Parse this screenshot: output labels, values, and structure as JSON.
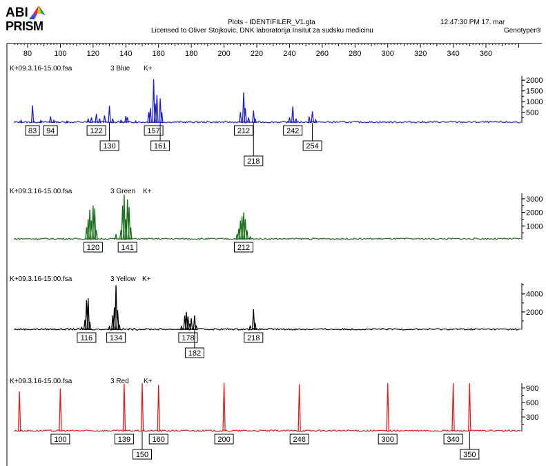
{
  "header": {
    "logo_top": "ABI",
    "logo_bottom": "PRISM",
    "title": "Plots - IDENTIFILER_V1.gta",
    "license": "Licensed to Oliver Stojkovic, DNK laboratorija Insitut za sudsku medicinu",
    "time": "12:47:30  PM 17. mar",
    "app": "Genotyper®"
  },
  "colors": {
    "blue": "#1e1ec8",
    "green": "#1b6e1b",
    "yellow": "#000000",
    "red": "#dc1e1e"
  },
  "chart_data": {
    "type": "line",
    "x_axis": {
      "range": [
        72,
        380
      ],
      "ticks": [
        80,
        100,
        120,
        140,
        160,
        180,
        200,
        220,
        240,
        260,
        280,
        300,
        320,
        340,
        360
      ]
    },
    "panels": [
      {
        "name": "blue",
        "sample": "K+09.3.16-15.00.fsa",
        "dye": "3 Blue",
        "tag": "K+",
        "color": "#1e1ec8",
        "y_ticks": [
          {
            "value": 2000,
            "label": "2000"
          },
          {
            "value": 1500,
            "label": "1500"
          },
          {
            "value": 1000,
            "label": "1000"
          },
          {
            "value": 500,
            "label": "500"
          }
        ],
        "y_max": 2200,
        "peaks": [
          {
            "x": 76,
            "h": 120
          },
          {
            "x": 83,
            "h": 820
          },
          {
            "x": 88,
            "h": 110
          },
          {
            "x": 94,
            "h": 300
          },
          {
            "x": 96,
            "h": 120
          },
          {
            "x": 104,
            "h": 80
          },
          {
            "x": 117,
            "h": 180
          },
          {
            "x": 119,
            "h": 260
          },
          {
            "x": 122,
            "h": 420
          },
          {
            "x": 124,
            "h": 200
          },
          {
            "x": 127,
            "h": 350
          },
          {
            "x": 130,
            "h": 800
          },
          {
            "x": 132,
            "h": 200
          },
          {
            "x": 137,
            "h": 120
          },
          {
            "x": 140,
            "h": 320
          },
          {
            "x": 141,
            "h": 260
          },
          {
            "x": 146,
            "h": 90
          },
          {
            "x": 154,
            "h": 500
          },
          {
            "x": 155,
            "h": 700
          },
          {
            "x": 157,
            "h": 2050
          },
          {
            "x": 158,
            "h": 900
          },
          {
            "x": 159,
            "h": 1300
          },
          {
            "x": 161,
            "h": 1150
          },
          {
            "x": 162,
            "h": 500
          },
          {
            "x": 210,
            "h": 500
          },
          {
            "x": 212,
            "h": 1430
          },
          {
            "x": 213,
            "h": 700
          },
          {
            "x": 215,
            "h": 250
          },
          {
            "x": 218,
            "h": 580
          },
          {
            "x": 219,
            "h": 200
          },
          {
            "x": 240,
            "h": 250
          },
          {
            "x": 242,
            "h": 770
          },
          {
            "x": 244,
            "h": 200
          },
          {
            "x": 252,
            "h": 300
          },
          {
            "x": 254,
            "h": 540
          },
          {
            "x": 256,
            "h": 150
          }
        ],
        "labels": [
          {
            "text": "83",
            "x": 83,
            "row": 1
          },
          {
            "text": "94",
            "x": 94,
            "row": 1
          },
          {
            "text": "122",
            "x": 122,
            "row": 1
          },
          {
            "text": "130",
            "x": 130,
            "row": 2
          },
          {
            "text": "157",
            "x": 157,
            "row": 1
          },
          {
            "text": "161",
            "x": 161,
            "row": 2
          },
          {
            "text": "212",
            "x": 212,
            "row": 1
          },
          {
            "text": "218",
            "x": 218,
            "row": 3
          },
          {
            "text": "242",
            "x": 242,
            "row": 1
          },
          {
            "text": "254",
            "x": 254,
            "row": 2
          }
        ]
      },
      {
        "name": "green",
        "sample": "K+09.3.16-15.00.fsa",
        "dye": "3 Green",
        "tag": "K+",
        "color": "#1b6e1b",
        "y_ticks": [
          {
            "value": 3000,
            "label": "3000"
          },
          {
            "value": 2000,
            "label": "2000"
          },
          {
            "value": 1000,
            "label": "1000"
          }
        ],
        "y_max": 3400,
        "peaks": [
          {
            "x": 116,
            "h": 900
          },
          {
            "x": 117,
            "h": 1500
          },
          {
            "x": 118,
            "h": 2200
          },
          {
            "x": 119,
            "h": 1400
          },
          {
            "x": 120,
            "h": 2500
          },
          {
            "x": 121,
            "h": 2300
          },
          {
            "x": 122,
            "h": 700
          },
          {
            "x": 134,
            "h": 400
          },
          {
            "x": 137,
            "h": 700
          },
          {
            "x": 138,
            "h": 2500
          },
          {
            "x": 139,
            "h": 3300
          },
          {
            "x": 140,
            "h": 1500
          },
          {
            "x": 141,
            "h": 2950
          },
          {
            "x": 142,
            "h": 2400
          },
          {
            "x": 143,
            "h": 900
          },
          {
            "x": 208,
            "h": 400
          },
          {
            "x": 209,
            "h": 800
          },
          {
            "x": 210,
            "h": 1400
          },
          {
            "x": 211,
            "h": 1700
          },
          {
            "x": 212,
            "h": 2000
          },
          {
            "x": 213,
            "h": 1500
          },
          {
            "x": 214,
            "h": 700
          },
          {
            "x": 216,
            "h": 200
          }
        ],
        "labels": [
          {
            "text": "120",
            "x": 120,
            "row": 1
          },
          {
            "text": "141",
            "x": 141,
            "row": 1
          },
          {
            "text": "212",
            "x": 212,
            "row": 1
          }
        ]
      },
      {
        "name": "yellow",
        "sample": "K+09.3.16-15.00.fsa",
        "dye": "3 Yellow",
        "tag": "K+",
        "color": "#000000",
        "y_ticks": [
          {
            "value": 4000,
            "label": "4000"
          },
          {
            "value": 2000,
            "label": "2000"
          }
        ],
        "y_max": 5200,
        "peaks": [
          {
            "x": 113,
            "h": 300
          },
          {
            "x": 115,
            "h": 1100
          },
          {
            "x": 116,
            "h": 3300
          },
          {
            "x": 117,
            "h": 3500
          },
          {
            "x": 118,
            "h": 900
          },
          {
            "x": 130,
            "h": 400
          },
          {
            "x": 132,
            "h": 1600
          },
          {
            "x": 133,
            "h": 2500
          },
          {
            "x": 134,
            "h": 4950
          },
          {
            "x": 135,
            "h": 2200
          },
          {
            "x": 136,
            "h": 600
          },
          {
            "x": 174,
            "h": 400
          },
          {
            "x": 176,
            "h": 1600
          },
          {
            "x": 177,
            "h": 2000
          },
          {
            "x": 178,
            "h": 1500
          },
          {
            "x": 179,
            "h": 700
          },
          {
            "x": 180,
            "h": 1300
          },
          {
            "x": 182,
            "h": 1600
          },
          {
            "x": 183,
            "h": 500
          },
          {
            "x": 216,
            "h": 500
          },
          {
            "x": 218,
            "h": 2300
          },
          {
            "x": 219,
            "h": 800
          }
        ],
        "labels": [
          {
            "text": "116",
            "x": 116,
            "row": 1
          },
          {
            "text": "134",
            "x": 134,
            "row": 1
          },
          {
            "text": "178",
            "x": 178,
            "row": 1
          },
          {
            "text": "182",
            "x": 182,
            "row": 2
          },
          {
            "text": "218",
            "x": 218,
            "row": 1
          }
        ]
      },
      {
        "name": "red",
        "sample": "K+09.3.16-15.00.fsa",
        "dye": "3 Red",
        "tag": "K+",
        "color": "#dc1e1e",
        "y_ticks": [
          {
            "value": 900,
            "label": "900"
          },
          {
            "value": 600,
            "label": "600"
          },
          {
            "value": 300,
            "label": "300"
          }
        ],
        "y_max": 1000,
        "peaks": [
          {
            "x": 75,
            "h": 830
          },
          {
            "x": 100,
            "h": 890
          },
          {
            "x": 139,
            "h": 990
          },
          {
            "x": 150,
            "h": 1000
          },
          {
            "x": 160,
            "h": 960
          },
          {
            "x": 200,
            "h": 1000
          },
          {
            "x": 246,
            "h": 980
          },
          {
            "x": 300,
            "h": 1000
          },
          {
            "x": 340,
            "h": 1000
          },
          {
            "x": 350,
            "h": 1000
          }
        ],
        "labels": [
          {
            "text": "100",
            "x": 100,
            "row": 1
          },
          {
            "text": "139",
            "x": 139,
            "row": 1
          },
          {
            "text": "150",
            "x": 150,
            "row": 2
          },
          {
            "text": "160",
            "x": 160,
            "row": 1
          },
          {
            "text": "200",
            "x": 200,
            "row": 1
          },
          {
            "text": "246",
            "x": 246,
            "row": 1
          },
          {
            "text": "300",
            "x": 300,
            "row": 1
          },
          {
            "text": "340",
            "x": 340,
            "row": 1
          },
          {
            "text": "350",
            "x": 350,
            "row": 2
          }
        ]
      }
    ]
  }
}
